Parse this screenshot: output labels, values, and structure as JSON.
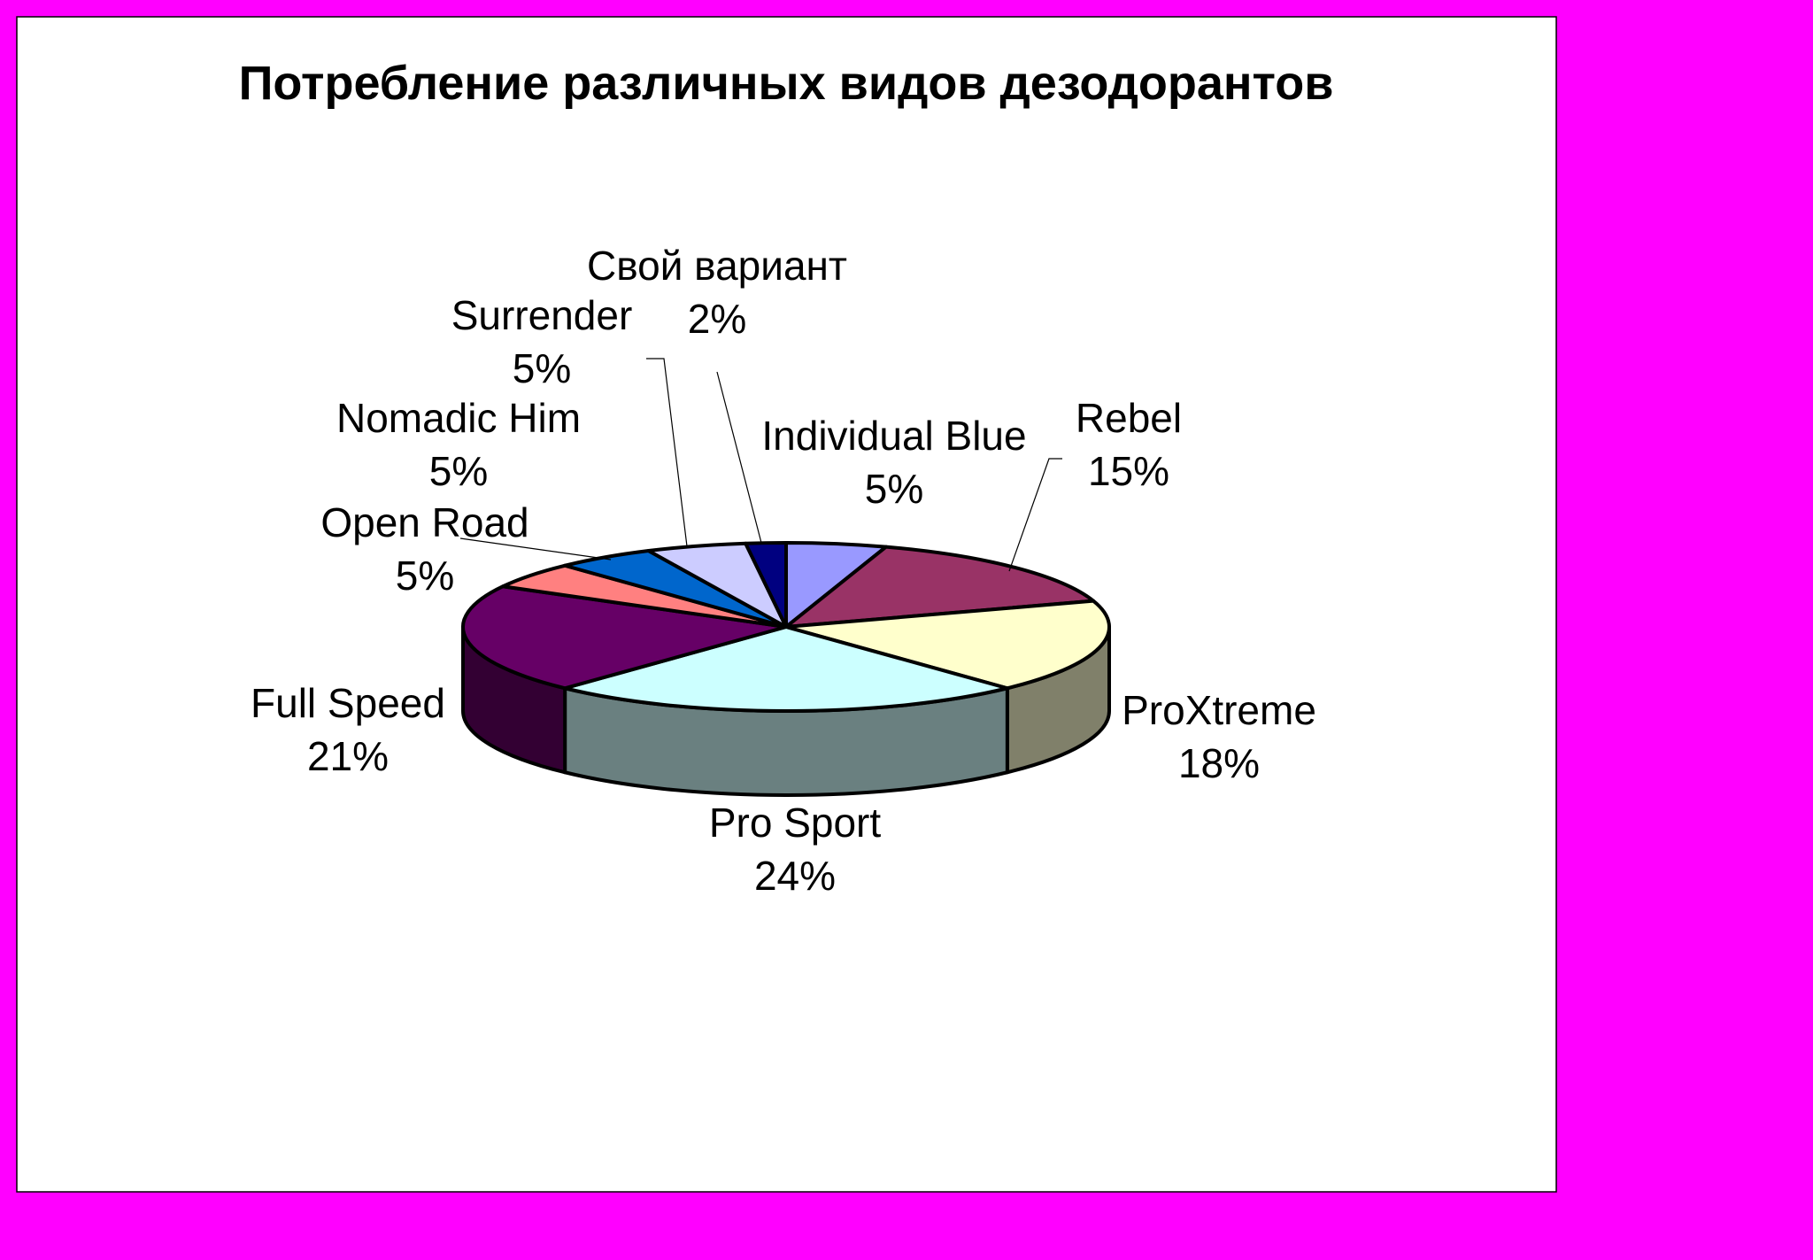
{
  "colors": {
    "background": "#ff00ff",
    "plot_area": "#ffffff"
  },
  "chart_data": {
    "type": "pie",
    "variant": "3d-pie",
    "title": "Потребление различных видов дезодорантов",
    "slices": [
      {
        "name": "Individual Blue",
        "value": 5,
        "label": "5%",
        "color": "#9999ff",
        "side_color": "#6666b3"
      },
      {
        "name": "Rebel",
        "value": 15,
        "label": "15%",
        "color": "#993366",
        "side_color": "#6b2447"
      },
      {
        "name": "ProXtreme",
        "value": 18,
        "label": "18%",
        "color": "#ffffcc",
        "side_color": "#80806a"
      },
      {
        "name": "Pro Sport",
        "value": 24,
        "label": "24%",
        "color": "#ccffff",
        "side_color": "#6a8080"
      },
      {
        "name": "Full Speed",
        "value": 21,
        "label": "21%",
        "color": "#660066",
        "side_color": "#330033"
      },
      {
        "name": "Open Road",
        "value": 5,
        "label": "5%",
        "color": "#ff8080",
        "side_color": "#b35a5a"
      },
      {
        "name": "Nomadic Him",
        "value": 5,
        "label": "5%",
        "color": "#0066cc",
        "side_color": "#00478f"
      },
      {
        "name": "Surrender",
        "value": 5,
        "label": "5%",
        "color": "#ccccff",
        "side_color": "#8f8fb3"
      },
      {
        "name": "Свой вариант",
        "value": 2,
        "label": "2%",
        "color": "#000080",
        "side_color": "#00005a"
      }
    ]
  }
}
